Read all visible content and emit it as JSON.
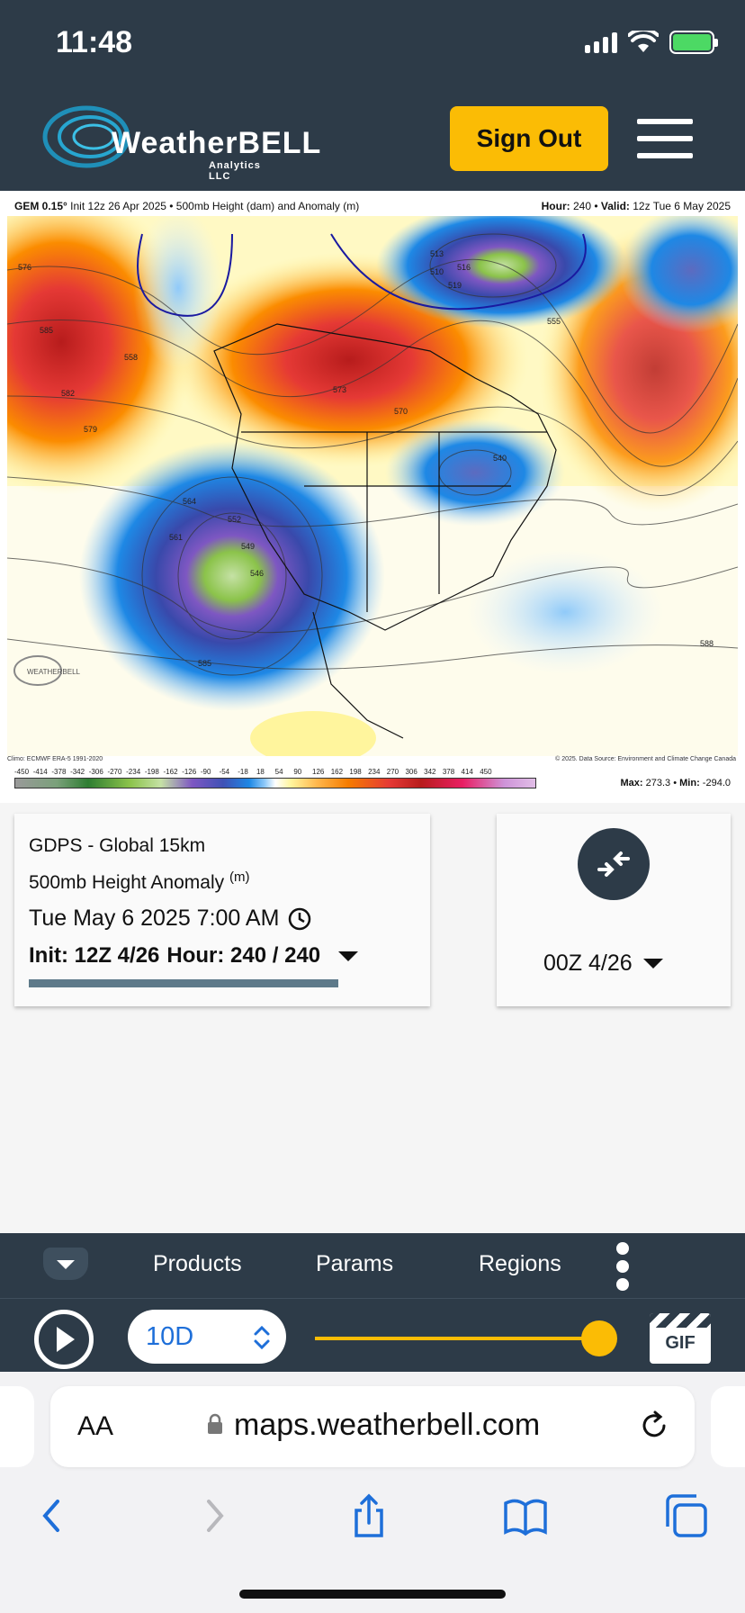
{
  "status": {
    "time": "11:48"
  },
  "header": {
    "brand_main": "WeatherBELL",
    "brand_sub": "Analytics LLC",
    "sign_out_label": "Sign Out"
  },
  "map": {
    "model_label": "GEM 0.15°",
    "init_text": "Init 12z 26 Apr 2025",
    "product_text": "500mb Height (dam) and Anomaly (m)",
    "hour_label": "Hour:",
    "hour_value": "240",
    "valid_label": "Valid:",
    "valid_value": "12z Tue 6 May 2025",
    "climo_text": "Climo: ECMWF ERA-5 1991-2020",
    "datasource_text": "© 2025. Data Source: Environment and Climate Change Canada",
    "scale_ticks": [
      "-450",
      "-414",
      "-378",
      "-342",
      "-306",
      "-270",
      "-234",
      "-198",
      "-162",
      "-126",
      "-90",
      "-54",
      "-18",
      "18",
      "54",
      "90",
      "126",
      "162",
      "198",
      "234",
      "270",
      "306",
      "342",
      "378",
      "414",
      "450"
    ],
    "max_label": "Max:",
    "max_value": "273.3",
    "min_label": "Min:",
    "min_value": "-294.0",
    "contour_labels": [
      "585",
      "582",
      "579",
      "576",
      "573",
      "570",
      "564",
      "561",
      "558",
      "555",
      "552",
      "549",
      "546",
      "540",
      "519",
      "516",
      "513",
      "510",
      "588"
    ]
  },
  "info_card": {
    "model": "GDPS - Global 15km",
    "param": "500mb Height Anomaly",
    "param_unit": "(m)",
    "datetime": "Tue May 6 2025 7:00 AM",
    "init": "Init: 12Z 4/26",
    "hour": "Hour: 240 / 240"
  },
  "compare_card": {
    "run": "00Z 4/26"
  },
  "toolbar": {
    "tabs": [
      "Products",
      "Params",
      "Regions"
    ],
    "range_value": "10D",
    "slider_fraction": 1.0,
    "gif_label": "GIF"
  },
  "safari": {
    "aa_label": "AA",
    "url": "maps.weatherbell.com"
  },
  "icons": {
    "signal": "cellular-signal-icon",
    "wifi": "wifi-icon",
    "battery": "battery-charging-icon",
    "clock": "clock-icon",
    "compare": "compare-arrows-icon",
    "play": "play-icon",
    "gif": "gif-clapper-icon",
    "lock": "lock-icon",
    "reload": "reload-icon",
    "back": "back-icon",
    "forward": "forward-icon",
    "share": "share-icon",
    "bookmarks": "bookmarks-icon",
    "tabs": "tabs-icon"
  },
  "colors": {
    "header_bg": "#2d3b48",
    "accent": "#fbbc05",
    "link_blue": "#1e6fd9"
  }
}
